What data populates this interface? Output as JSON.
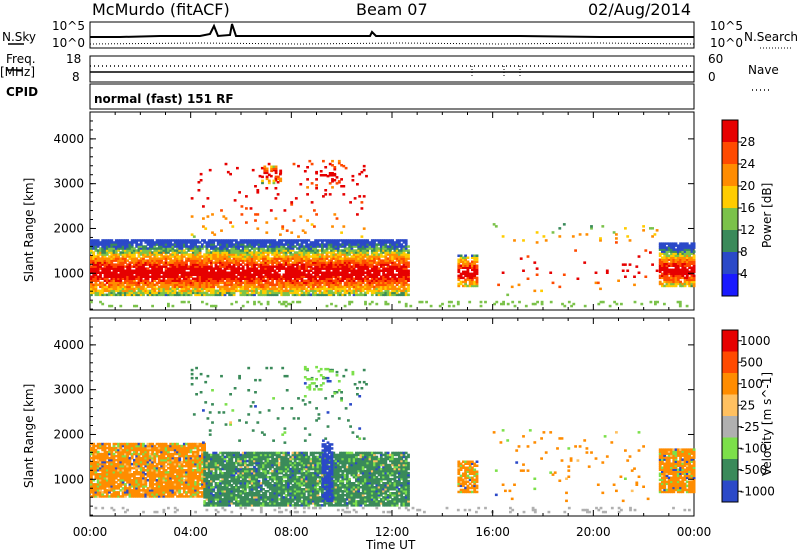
{
  "header": {
    "station": "McMurdo (fitACF)",
    "beam": "Beam 07",
    "date": "02/Aug/2014"
  },
  "noise_panel": {
    "left_label": "N.Sky",
    "right_label": "N.Search",
    "left_ticks": [
      "10^5",
      "10^0"
    ],
    "right_ticks": [
      "10^5",
      "10^0"
    ]
  },
  "freq_panel": {
    "left_label": "Freq.",
    "left_unit": "[MHz]",
    "left_ticks": [
      "18",
      "8"
    ],
    "right_label": "Nave",
    "right_ticks": [
      "60",
      "0"
    ]
  },
  "cpid": {
    "label": "CPID",
    "value": "normal (fast) 151 RF"
  },
  "colors": {
    "power_scale": [
      "#1a1aff",
      "#2b49c8",
      "#3a8a5a",
      "#7bc24a",
      "#ffcc00",
      "#ff8c00",
      "#ff4a00",
      "#e60000"
    ],
    "velocity_scale": [
      "#e60000",
      "#ff4a00",
      "#ff8c00",
      "#ffc060",
      "#b0b0b0",
      "#7ce04a",
      "#3a8a5a",
      "#2b49c8"
    ]
  },
  "chart_data": [
    {
      "type": "heatmap",
      "name": "power",
      "ylabel": "Slant Range [km]",
      "y_ticks": [
        "1000",
        "2000",
        "3000",
        "4000"
      ],
      "colorbar_label": "Power [dB]",
      "colorbar_ticks": [
        "28",
        "24",
        "20",
        "16",
        "12",
        "8",
        "4"
      ],
      "xlim": [
        "00:00",
        "24:00"
      ],
      "ylim": [
        180,
        4600
      ]
    },
    {
      "type": "heatmap",
      "name": "velocity",
      "ylabel": "Slant Range [km]",
      "y_ticks": [
        "1000",
        "2000",
        "3000",
        "4000"
      ],
      "colorbar_label": "Velocity [m s^-1]",
      "colorbar_ticks": [
        "1000",
        "500",
        "100",
        "25",
        "-25",
        "-100",
        "-500",
        "-1000"
      ],
      "xlabel": "Time UT",
      "x_ticks": [
        "00:00",
        "04:00",
        "08:00",
        "12:00",
        "16:00",
        "20:00",
        "00:00"
      ],
      "xlim": [
        "00:00",
        "24:00"
      ],
      "ylim": [
        180,
        4600
      ]
    }
  ]
}
